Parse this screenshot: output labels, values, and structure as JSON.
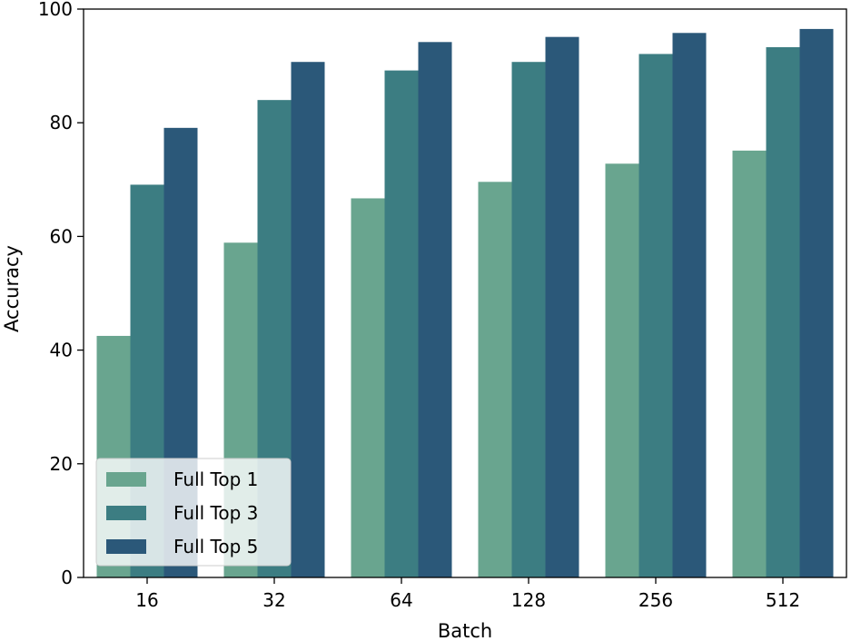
{
  "chart_data": {
    "type": "bar",
    "xlabel": "Batch",
    "ylabel": "Accuracy",
    "categories": [
      "16",
      "32",
      "64",
      "128",
      "256",
      "512"
    ],
    "ylim": [
      0,
      100
    ],
    "yticks": [
      0,
      20,
      40,
      60,
      80,
      100
    ],
    "grid": false,
    "legend_position": "bottom-left",
    "series": [
      {
        "name": "Full Top 1",
        "color": "#69a58f",
        "values": [
          42.5,
          58.9,
          66.7,
          69.6,
          72.8,
          75.1
        ]
      },
      {
        "name": "Full Top 3",
        "color": "#3c7d82",
        "values": [
          69.1,
          84.0,
          89.2,
          90.7,
          92.1,
          93.3
        ]
      },
      {
        "name": "Full Top 5",
        "color": "#2b5879",
        "values": [
          79.1,
          90.7,
          94.2,
          95.1,
          95.8,
          96.5
        ]
      }
    ]
  }
}
